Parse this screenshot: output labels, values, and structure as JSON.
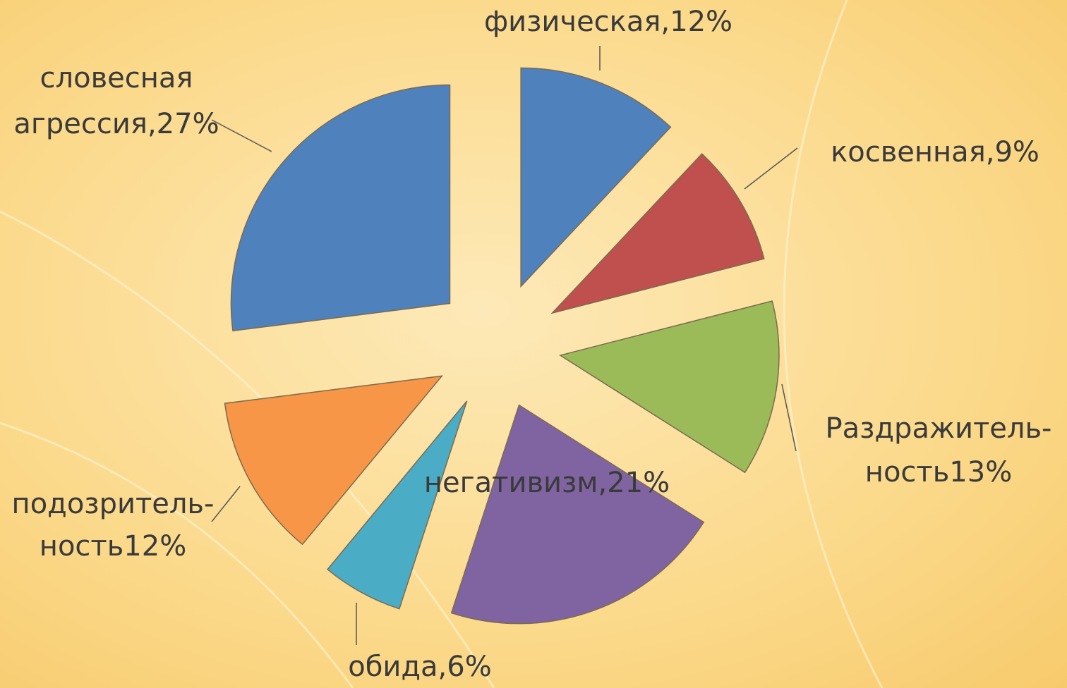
{
  "chart_data": {
    "type": "pie",
    "values": [
      12,
      9,
      13,
      21,
      6,
      12,
      27
    ],
    "value_labels": [
      [
        "физическая,12%"
      ],
      [
        "косвенная,9%"
      ],
      [
        "Раздражитель-",
        "ность13%"
      ],
      [
        "негативизм,21%"
      ],
      [
        "обида,6%"
      ],
      [
        "подозритель-",
        "ность12%"
      ],
      [
        "словесная",
        "агрессия,27%"
      ]
    ],
    "colors": [
      "#4f81bd",
      "#c0504d",
      "#9bbb59",
      "#8064a2",
      "#4bacc6",
      "#f79646",
      "#4f81bd"
    ]
  }
}
